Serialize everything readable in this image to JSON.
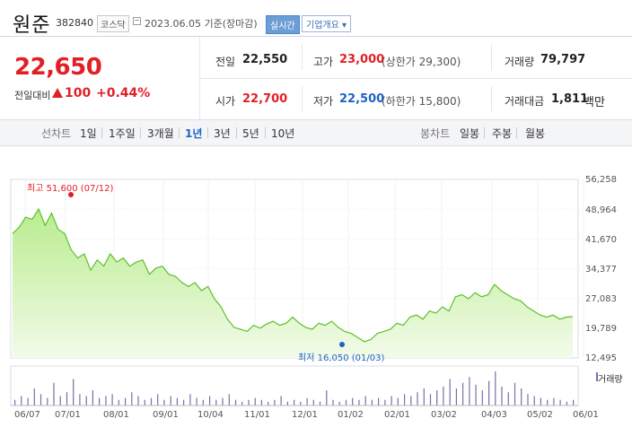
{
  "header": {
    "name": "원준",
    "code": "382840",
    "market": "코스닥",
    "date_text": "2023.06.05 기준(장마감)",
    "realtime_label": "실시간",
    "company_label": "기업개요 ▾"
  },
  "price": {
    "current": "22,650",
    "change_label": "전일대비",
    "change_value": "100",
    "change_pct": "+0.44%"
  },
  "stats": {
    "prev_label": "전일",
    "prev_val": "22,550",
    "high_label": "고가",
    "high_val": "23,000",
    "upper_limit": "(상한가 29,300)",
    "volume_label": "거래량",
    "volume_val": "79,797",
    "open_label": "시가",
    "open_val": "22,700",
    "low_label": "저가",
    "low_val": "22,500",
    "lower_limit": "(하한가 15,800)",
    "amount_label": "거래대금",
    "amount_val": "1,811",
    "amount_unit": "백만"
  },
  "period_bar": {
    "line_label": "선차트",
    "periods": [
      "1일",
      "1주일",
      "3개월",
      "1년",
      "3년",
      "5년",
      "10년"
    ],
    "active": "1년",
    "candle_label": "봉차트",
    "candles": [
      "일봉",
      "주봉",
      "월봉"
    ]
  },
  "chart_data": {
    "type": "area",
    "y_ticks": [
      "56,258",
      "48,964",
      "41,670",
      "34,377",
      "27,083",
      "19,789",
      "12,495"
    ],
    "ylim": [
      12495,
      56258
    ],
    "x_ticks": [
      "06/07",
      "07/01",
      "08/01",
      "09/01",
      "10/04",
      "11/01",
      "12/01",
      "01/02",
      "02/01",
      "03/02",
      "04/03",
      "05/02",
      "06/01"
    ],
    "series": [
      {
        "values": [
          43000,
          44500,
          47000,
          46500,
          49000,
          45000,
          48000,
          44000,
          43000,
          39000,
          37000,
          38000,
          34000,
          36500,
          35000,
          38000,
          36000,
          37000,
          35000,
          36000,
          36500,
          33000,
          34500,
          35000,
          33000,
          32500,
          31000,
          30000,
          31000,
          29000,
          30000,
          27000,
          25000,
          22000,
          20000,
          19500,
          19000,
          20500,
          19800,
          20800,
          21500,
          20500,
          21000,
          22500,
          21000,
          20000,
          19500,
          21000,
          20500,
          21500,
          20000,
          19000,
          18500,
          17500,
          16500,
          17000,
          18500,
          19000,
          19500,
          21000,
          20500,
          22500,
          23000,
          22000,
          24000,
          23500,
          25000,
          24000,
          27500,
          28000,
          27000,
          28500,
          27500,
          28000,
          30500,
          29000,
          28000,
          27000,
          26500,
          25000,
          24000,
          23000,
          22500,
          23000,
          22000,
          22500,
          22650
        ]
      }
    ],
    "high_annotation": "최고 51,600 (07/12)",
    "low_annotation": "최저 16,050 (01/03)",
    "volume_label": "거래량",
    "volume": [
      3,
      5,
      4,
      9,
      6,
      4,
      12,
      5,
      7,
      14,
      6,
      5,
      8,
      4,
      5,
      6,
      3,
      4,
      7,
      5,
      3,
      4,
      6,
      3,
      5,
      4,
      3,
      6,
      4,
      3,
      5,
      3,
      4,
      6,
      3,
      2,
      3,
      4,
      3,
      2,
      3,
      5,
      2,
      3,
      2,
      4,
      3,
      2,
      8,
      3,
      2,
      3,
      4,
      3,
      5,
      3,
      4,
      3,
      5,
      4,
      6,
      5,
      7,
      9,
      6,
      8,
      10,
      14,
      9,
      12,
      15,
      11,
      8,
      13,
      18,
      10,
      7,
      12,
      9,
      6,
      5,
      4,
      3,
      4,
      3,
      2,
      3
    ]
  }
}
